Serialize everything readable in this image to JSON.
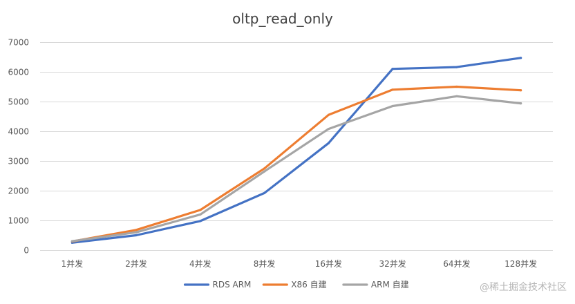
{
  "chart_data": {
    "type": "line",
    "title": "oltp_read_only",
    "xlabel": "",
    "ylabel": "",
    "categories": [
      "1并发",
      "2并发",
      "4并发",
      "8并发",
      "16并发",
      "32并发",
      "64并发",
      "128并发"
    ],
    "ylim": [
      0,
      7000
    ],
    "yticks": [
      0,
      1000,
      2000,
      3000,
      4000,
      5000,
      6000,
      7000
    ],
    "grid": true,
    "legend_position": "bottom",
    "series": [
      {
        "name": "RDS ARM",
        "color": "#4472c4",
        "values": [
          250,
          500,
          980,
          1920,
          3600,
          6100,
          6160,
          6470
        ]
      },
      {
        "name": "X86 自建",
        "color": "#ed7d31",
        "values": [
          290,
          680,
          1350,
          2750,
          4550,
          5400,
          5500,
          5380
        ]
      },
      {
        "name": "ARM 自建",
        "color": "#a5a5a5",
        "values": [
          300,
          600,
          1200,
          2650,
          4080,
          4850,
          5180,
          4940
        ]
      }
    ]
  },
  "watermark": "@稀土掘金技术社区"
}
